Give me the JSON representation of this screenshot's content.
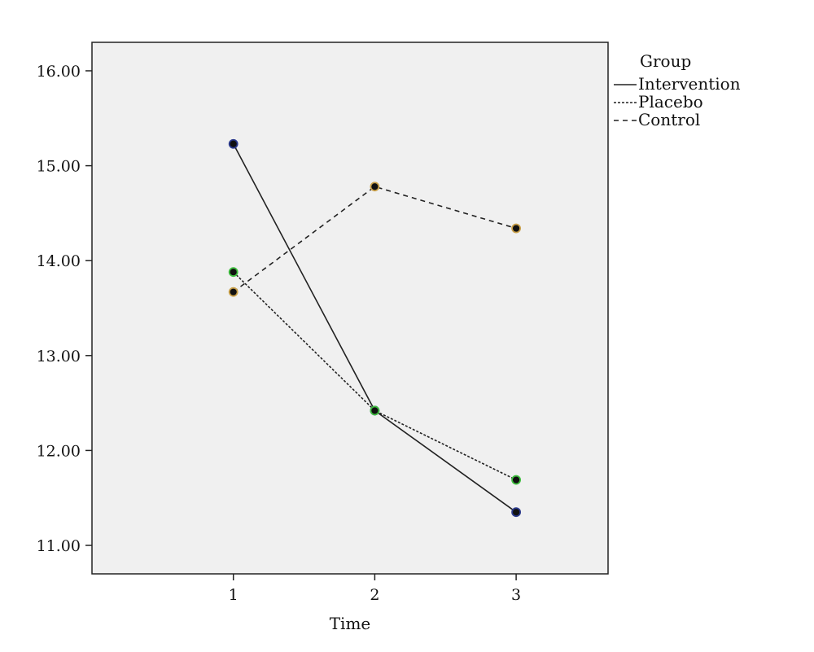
{
  "chart_data": {
    "type": "line",
    "title": "",
    "xlabel": "Time",
    "ylabel": "",
    "x": [
      1,
      2,
      3
    ],
    "xlim": [
      0.0,
      3.65
    ],
    "ylim": [
      10.7,
      16.3
    ],
    "x_ticks": [
      "1",
      "2",
      "3"
    ],
    "y_ticks": [
      "11.00",
      "12.00",
      "13.00",
      "14.00",
      "15.00",
      "16.00"
    ],
    "grid": false,
    "legend": {
      "title": "Group",
      "placement": "top-right-outside"
    },
    "series": [
      {
        "name": "Intervention",
        "values": [
          15.23,
          12.42,
          11.35
        ],
        "dash": "solid",
        "marker_color": "#2b3a8c"
      },
      {
        "name": "Placebo",
        "values": [
          13.88,
          12.42,
          11.69
        ],
        "dash": "dotted",
        "marker_color": "#3fbf3f"
      },
      {
        "name": "Control",
        "values": [
          13.67,
          14.78,
          14.34
        ],
        "dash": "dashed",
        "marker_color": "#c9a04a"
      }
    ],
    "plot_background": "#f0f0f0",
    "line_color": "#222222"
  }
}
